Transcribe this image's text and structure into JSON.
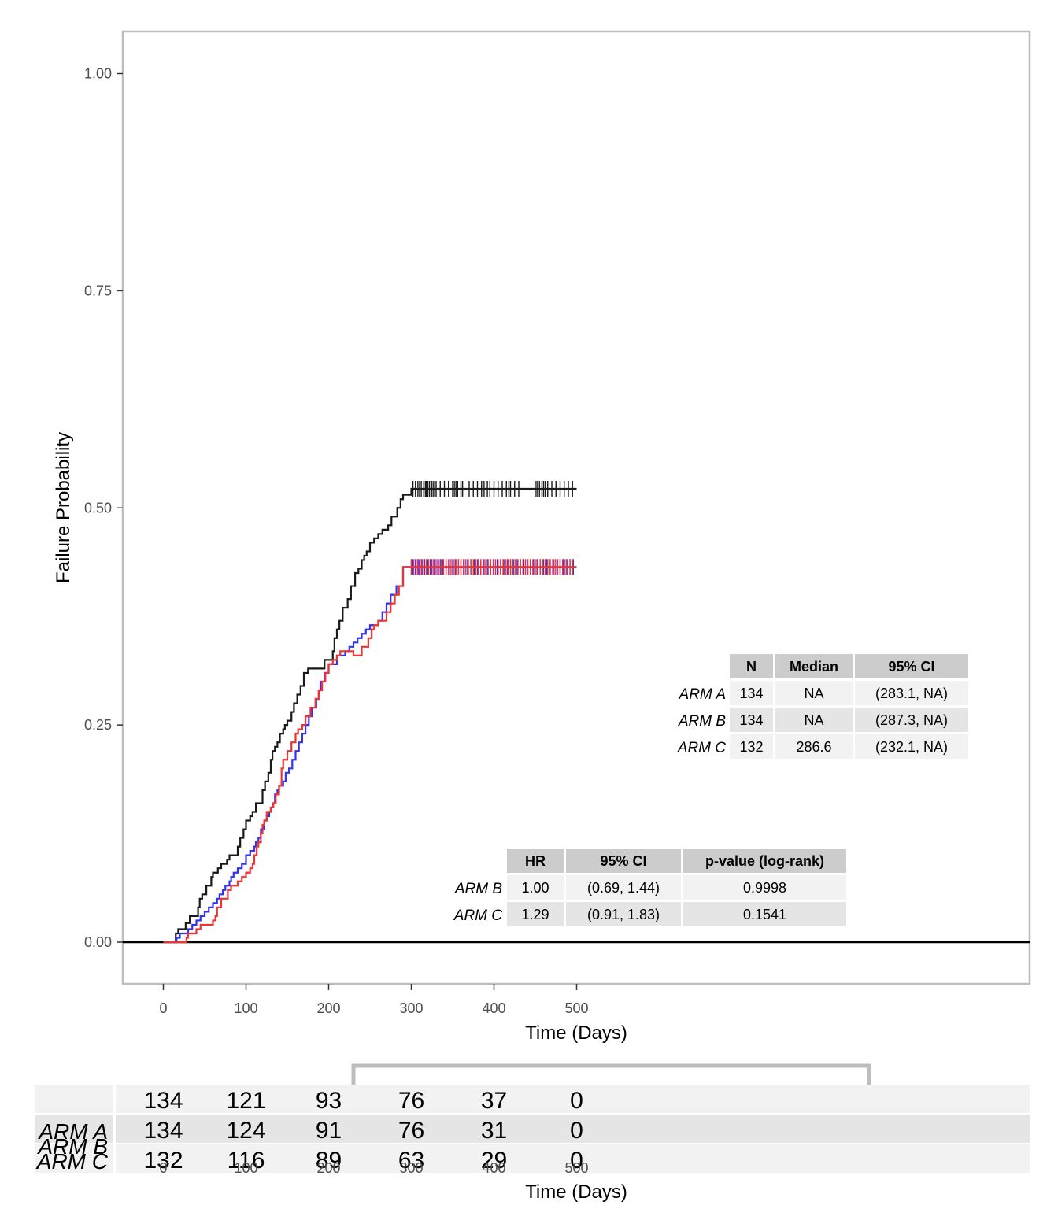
{
  "chart_data": {
    "type": "line",
    "step": true,
    "xlabel": "Time (Days)",
    "ylabel": "Failure Probability",
    "xlim": [
      -25,
      525
    ],
    "ylim": [
      -0.05,
      1.05
    ],
    "x_ticks": [
      0,
      100,
      200,
      300,
      400,
      500
    ],
    "y_ticks": [
      "0.00",
      "0.25",
      "0.50",
      "0.75",
      "1.00"
    ],
    "y_tick_values": [
      0,
      0.25,
      0.5,
      0.75,
      1.0
    ],
    "grid": false,
    "reference_line_y": 0,
    "series": [
      {
        "name": "ARM A",
        "color": "#1a1a1a",
        "x": [
          0,
          15,
          18,
          27,
          32,
          42,
          44,
          47,
          52,
          58,
          60,
          66,
          70,
          77,
          80,
          90,
          93,
          97,
          100,
          105,
          108,
          112,
          120,
          123,
          127,
          130,
          132,
          135,
          138,
          141,
          145,
          147,
          150,
          155,
          158,
          162,
          166,
          170,
          175,
          180,
          195,
          205,
          207,
          210,
          213,
          217,
          223,
          227,
          232,
          236,
          240,
          243,
          246,
          250,
          255,
          260,
          265,
          272,
          276,
          283,
          287,
          290,
          300,
          500
        ],
        "y": [
          0,
          0.01,
          0.015,
          0.022,
          0.03,
          0.04,
          0.05,
          0.055,
          0.065,
          0.075,
          0.08,
          0.085,
          0.09,
          0.095,
          0.1,
          0.11,
          0.12,
          0.13,
          0.14,
          0.145,
          0.15,
          0.16,
          0.175,
          0.185,
          0.195,
          0.21,
          0.22,
          0.225,
          0.23,
          0.24,
          0.245,
          0.25,
          0.255,
          0.265,
          0.275,
          0.285,
          0.295,
          0.31,
          0.315,
          0.315,
          0.325,
          0.335,
          0.35,
          0.36,
          0.37,
          0.385,
          0.395,
          0.41,
          0.425,
          0.43,
          0.44,
          0.445,
          0.45,
          0.46,
          0.465,
          0.47,
          0.475,
          0.48,
          0.49,
          0.5,
          0.51,
          0.515,
          0.522,
          0.522
        ],
        "censor_x": [
          302,
          305,
          308,
          310,
          312,
          315,
          317,
          318,
          320,
          322,
          325,
          327,
          330,
          335,
          340,
          345,
          350,
          352,
          354,
          356,
          360,
          362,
          370,
          375,
          380,
          385,
          388,
          392,
          395,
          400,
          405,
          410,
          415,
          418,
          420,
          425,
          430,
          450,
          452,
          455,
          458,
          460,
          462,
          465,
          470,
          475,
          480,
          485,
          490,
          495
        ],
        "censor_y": 0.522
      },
      {
        "name": "ARM B",
        "color": "#3333ee",
        "x": [
          0,
          16,
          20,
          30,
          35,
          40,
          45,
          50,
          55,
          60,
          65,
          68,
          72,
          75,
          80,
          82,
          85,
          90,
          95,
          100,
          105,
          110,
          112,
          115,
          118,
          122,
          125,
          128,
          130,
          133,
          135,
          138,
          140,
          145,
          148,
          152,
          156,
          160,
          164,
          168,
          172,
          176,
          180,
          185,
          188,
          190,
          195,
          200,
          210,
          220,
          225,
          230,
          235,
          240,
          245,
          250,
          260,
          265,
          270,
          275,
          282,
          290,
          500
        ],
        "y": [
          0,
          0.005,
          0.01,
          0.015,
          0.02,
          0.025,
          0.03,
          0.035,
          0.04,
          0.045,
          0.05,
          0.055,
          0.06,
          0.065,
          0.07,
          0.075,
          0.08,
          0.085,
          0.09,
          0.1,
          0.105,
          0.11,
          0.115,
          0.12,
          0.13,
          0.14,
          0.145,
          0.15,
          0.155,
          0.16,
          0.17,
          0.175,
          0.18,
          0.185,
          0.195,
          0.2,
          0.21,
          0.22,
          0.23,
          0.24,
          0.25,
          0.26,
          0.27,
          0.28,
          0.29,
          0.3,
          0.31,
          0.32,
          0.33,
          0.335,
          0.34,
          0.345,
          0.35,
          0.355,
          0.36,
          0.365,
          0.37,
          0.38,
          0.39,
          0.4,
          0.41,
          0.432,
          0.432
        ],
        "censor_x": [
          300,
          302,
          305,
          308,
          310,
          313,
          316,
          320,
          323,
          325,
          328,
          332,
          335,
          338,
          342,
          346,
          350,
          353,
          357,
          360,
          364,
          368,
          372,
          376,
          380,
          384,
          388,
          392,
          396,
          400,
          404,
          408,
          412,
          416,
          420,
          424,
          428,
          432,
          436,
          440,
          444,
          448,
          452,
          456,
          460,
          464,
          468,
          472,
          476,
          480,
          484,
          488,
          492,
          496
        ],
        "censor_y": 0.432
      },
      {
        "name": "ARM C",
        "color": "#ee3333",
        "x": [
          0,
          28,
          30,
          40,
          45,
          60,
          63,
          65,
          70,
          78,
          82,
          90,
          95,
          100,
          105,
          108,
          110,
          113,
          115,
          118,
          120,
          122,
          125,
          130,
          133,
          136,
          140,
          143,
          145,
          150,
          155,
          160,
          163,
          168,
          172,
          178,
          184,
          188,
          192,
          196,
          200,
          205,
          210,
          214,
          220,
          230,
          240,
          248,
          252,
          255,
          260,
          270,
          275,
          280,
          285,
          290,
          500
        ],
        "y": [
          0,
          0.005,
          0.01,
          0.015,
          0.02,
          0.025,
          0.03,
          0.04,
          0.05,
          0.06,
          0.065,
          0.07,
          0.075,
          0.08,
          0.085,
          0.09,
          0.1,
          0.11,
          0.115,
          0.125,
          0.135,
          0.14,
          0.15,
          0.155,
          0.16,
          0.17,
          0.18,
          0.2,
          0.21,
          0.22,
          0.23,
          0.24,
          0.245,
          0.25,
          0.26,
          0.27,
          0.28,
          0.29,
          0.3,
          0.31,
          0.32,
          0.325,
          0.33,
          0.335,
          0.335,
          0.33,
          0.34,
          0.35,
          0.36,
          0.365,
          0.37,
          0.38,
          0.39,
          0.4,
          0.41,
          0.432,
          0.432
        ],
        "censor_x": [
          300,
          303,
          306,
          309,
          312,
          315,
          318,
          321,
          324,
          327,
          330,
          333,
          336,
          339,
          342,
          345,
          348,
          351,
          354,
          357,
          360,
          363,
          366,
          369,
          372,
          375,
          378,
          381,
          384,
          387,
          390,
          393,
          396,
          399,
          402,
          405,
          408,
          411,
          414,
          417,
          420,
          423,
          426,
          429,
          432,
          435,
          438,
          441,
          444,
          447,
          450,
          453,
          456,
          459,
          462,
          465,
          468,
          471,
          474,
          477,
          480,
          483,
          486,
          489,
          492,
          495
        ],
        "censor_y": 0.432
      }
    ],
    "summary_table": {
      "headers": [
        "N",
        "Median",
        "95% CI"
      ],
      "rows": [
        {
          "label": "ARM A",
          "cells": [
            "134",
            "NA",
            "(283.1, NA)"
          ]
        },
        {
          "label": "ARM B",
          "cells": [
            "134",
            "NA",
            "(287.3, NA)"
          ]
        },
        {
          "label": "ARM C",
          "cells": [
            "132",
            "286.6",
            "(232.1, NA)"
          ]
        }
      ]
    },
    "hr_table": {
      "headers": [
        "HR",
        "95% CI",
        "p-value (log-rank)"
      ],
      "rows": [
        {
          "label": "ARM B",
          "cells": [
            "1.00",
            "(0.69, 1.44)",
            "0.9998"
          ]
        },
        {
          "label": "ARM C",
          "cells": [
            "1.29",
            "(0.91, 1.83)",
            "0.1541"
          ]
        }
      ]
    },
    "risk_table": {
      "xlabel": "Time (Days)",
      "x_ticks": [
        0,
        100,
        200,
        300,
        400,
        500
      ],
      "rows": [
        {
          "label": "",
          "counts": [
            "134",
            "121",
            "93",
            "76",
            "37",
            "0"
          ]
        },
        {
          "label": "ARM A",
          "counts": [
            "134",
            "124",
            "91",
            "76",
            "31",
            "0"
          ]
        },
        {
          "label": "ARM C",
          "counts": [
            "132",
            "116",
            "89",
            "63",
            "29",
            "0"
          ]
        }
      ],
      "overlapping_label": "ARM B"
    }
  },
  "colors": {
    "panel_border": "#bdbdbd",
    "table_header_fill": "#cccccc",
    "table_row_fill_a": "#f2f2f2",
    "table_row_fill_b": "#e5e5e5"
  }
}
